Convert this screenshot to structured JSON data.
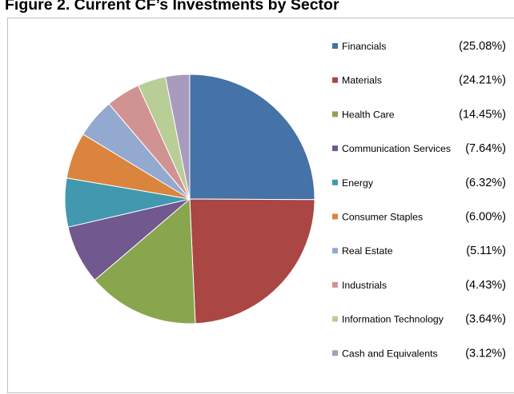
{
  "figure_title": "Figure 2. Current CF’s Investments by Sector",
  "chart_data": {
    "type": "pie",
    "title": "",
    "start_angle_deg": 0,
    "direction": "clockwise",
    "legend_position": "right",
    "slices": [
      {
        "label": "Financials",
        "value": 25.08,
        "value_label": "(25.08%)",
        "color": "#4572A7"
      },
      {
        "label": "Materials",
        "value": 24.21,
        "value_label": "(24.21%)",
        "color": "#AA4643"
      },
      {
        "label": "Health Care",
        "value": 14.45,
        "value_label": "(14.45%)",
        "color": "#89A54E"
      },
      {
        "label": "Communication Services",
        "value": 7.64,
        "value_label": "(7.64%)",
        "color": "#71588F"
      },
      {
        "label": "Energy",
        "value": 6.32,
        "value_label": "(6.32%)",
        "color": "#4198AF"
      },
      {
        "label": "Consumer Staples",
        "value": 6.0,
        "value_label": "(6.00%)",
        "color": "#DB843D"
      },
      {
        "label": "Real Estate",
        "value": 5.11,
        "value_label": "(5.11%)",
        "color": "#93A9CF"
      },
      {
        "label": "Industrials",
        "value": 4.43,
        "value_label": "(4.43%)",
        "color": "#D19392"
      },
      {
        "label": "Information Technology",
        "value": 3.64,
        "value_label": "(3.64%)",
        "color": "#B9CD96"
      },
      {
        "label": "Cash and Equivalents",
        "value": 3.12,
        "value_label": "(3.12%)",
        "color": "#A99BBD"
      }
    ]
  }
}
